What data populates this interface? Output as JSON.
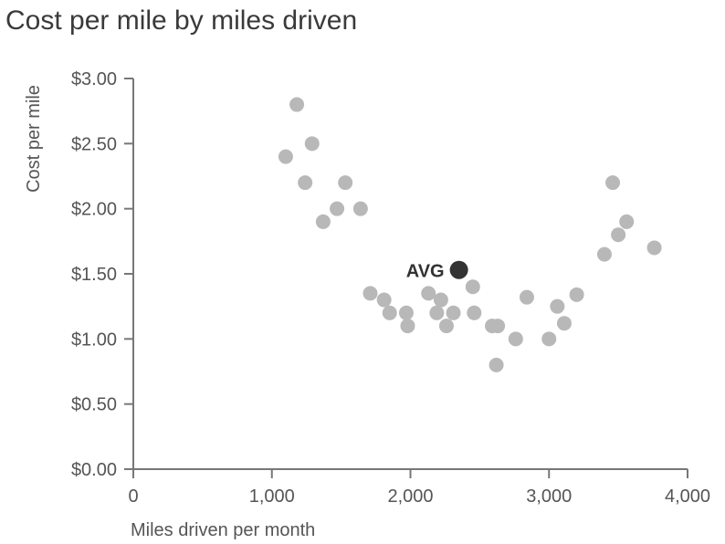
{
  "chart_data": {
    "type": "scatter",
    "title": "Cost per mile by miles driven",
    "xlabel": "Miles driven per month",
    "ylabel": "Cost per mile",
    "xlim": [
      0,
      4000
    ],
    "ylim": [
      0,
      3.0
    ],
    "x_ticks": [
      0,
      1000,
      2000,
      3000,
      4000
    ],
    "x_tick_labels": [
      "0",
      "1,000",
      "2,000",
      "3,000",
      "4,000"
    ],
    "y_ticks": [
      0,
      0.5,
      1.0,
      1.5,
      2.0,
      2.5,
      3.0
    ],
    "y_tick_labels": [
      "$0.00",
      "$0.50",
      "$1.00",
      "$1.50",
      "$2.00",
      "$2.50",
      "$3.00"
    ],
    "grid": false,
    "series": [
      {
        "color": "#b8b8b8",
        "points": [
          {
            "x": 1100,
            "y": 2.4
          },
          {
            "x": 1180,
            "y": 2.8
          },
          {
            "x": 1240,
            "y": 2.2
          },
          {
            "x": 1290,
            "y": 2.5
          },
          {
            "x": 1370,
            "y": 1.9
          },
          {
            "x": 1470,
            "y": 2.0
          },
          {
            "x": 1530,
            "y": 2.2
          },
          {
            "x": 1640,
            "y": 2.0
          },
          {
            "x": 1710,
            "y": 1.35
          },
          {
            "x": 1810,
            "y": 1.3
          },
          {
            "x": 1850,
            "y": 1.2
          },
          {
            "x": 1970,
            "y": 1.2
          },
          {
            "x": 1980,
            "y": 1.1
          },
          {
            "x": 2130,
            "y": 1.35
          },
          {
            "x": 2190,
            "y": 1.2
          },
          {
            "x": 2220,
            "y": 1.3
          },
          {
            "x": 2260,
            "y": 1.1
          },
          {
            "x": 2310,
            "y": 1.2
          },
          {
            "x": 2450,
            "y": 1.4
          },
          {
            "x": 2460,
            "y": 1.2
          },
          {
            "x": 2590,
            "y": 1.1
          },
          {
            "x": 2630,
            "y": 1.1
          },
          {
            "x": 2620,
            "y": 0.8
          },
          {
            "x": 2760,
            "y": 1.0
          },
          {
            "x": 2840,
            "y": 1.32
          },
          {
            "x": 3000,
            "y": 1.0
          },
          {
            "x": 3060,
            "y": 1.25
          },
          {
            "x": 3110,
            "y": 1.12
          },
          {
            "x": 3200,
            "y": 1.34
          },
          {
            "x": 3400,
            "y": 1.65
          },
          {
            "x": 3460,
            "y": 2.2
          },
          {
            "x": 3500,
            "y": 1.8
          },
          {
            "x": 3560,
            "y": 1.9
          },
          {
            "x": 3760,
            "y": 1.7
          }
        ]
      }
    ],
    "average": {
      "label": "AVG",
      "x": 2350,
      "y": 1.53,
      "color": "#333333"
    },
    "axis_color": "#777777"
  }
}
